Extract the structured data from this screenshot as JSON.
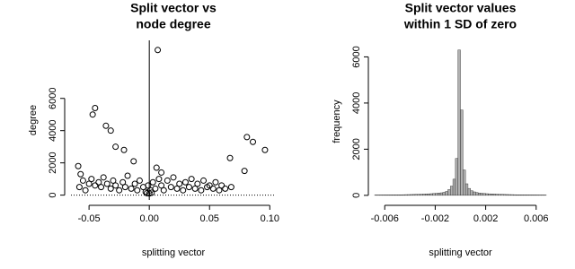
{
  "chart_data": [
    {
      "type": "scatter",
      "title": [
        "Split vector vs",
        "node degree"
      ],
      "xlabel": "splitting vector",
      "ylabel": "degree",
      "color": "#000000",
      "xlim": [
        -0.065,
        0.105
      ],
      "ylim": [
        -300,
        9600
      ],
      "xticks": [
        -0.05,
        {
          "value": 0,
          "label": "0.00"
        },
        0.05,
        {
          "value": 0.1,
          "label": "0.10"
        }
      ],
      "yticks": [
        0,
        2000,
        4000,
        6000
      ],
      "x": [
        0.007,
        -0.045,
        -0.047,
        -0.036,
        -0.032,
        -0.028,
        -0.021,
        0.081,
        0.086,
        0.096,
        0.067,
        0.079,
        -0.059,
        -0.057,
        -0.013,
        0.006,
        0.01,
        -0.055,
        -0.05,
        -0.048,
        -0.045,
        -0.042,
        -0.04,
        -0.038,
        -0.035,
        -0.032,
        -0.03,
        -0.028,
        -0.025,
        -0.022,
        -0.02,
        -0.018,
        -0.015,
        -0.012,
        -0.01,
        -0.008,
        -0.005,
        -0.003,
        -0.001,
        0.001,
        0.003,
        0.005,
        0.008,
        0.01,
        0.012,
        0.015,
        0.018,
        0.02,
        0.023,
        0.025,
        0.028,
        0.03,
        0.033,
        0.035,
        0.038,
        0.04,
        0.043,
        0.045,
        0.048,
        0.05,
        0.053,
        0.055,
        0.058,
        0.06,
        0.063,
        0.068,
        -0.058,
        -0.053,
        0,
        0.002,
        -0.002
      ],
      "values": [
        9000,
        5400,
        5000,
        4300,
        4000,
        3000,
        2800,
        3600,
        3300,
        2800,
        2300,
        1500,
        1800,
        1300,
        2100,
        1700,
        1400,
        900,
        700,
        1000,
        600,
        800,
        500,
        1100,
        700,
        400,
        900,
        600,
        300,
        800,
        500,
        1200,
        400,
        700,
        300,
        900,
        500,
        200,
        600,
        300,
        800,
        400,
        1000,
        600,
        300,
        900,
        500,
        1100,
        400,
        700,
        300,
        800,
        500,
        1000,
        400,
        700,
        300,
        900,
        500,
        600,
        400,
        800,
        300,
        600,
        400,
        500,
        500,
        300,
        100,
        150,
        120
      ]
    },
    {
      "type": "histogram",
      "title": [
        "Split vector values",
        "within 1 SD of zero"
      ],
      "xlabel": "splitting vector",
      "ylabel": "frequency",
      "color": "#b0b0b0",
      "xlim": [
        -0.0068,
        0.0068
      ],
      "ylim": [
        -200,
        6600
      ],
      "xticks": [
        -0.006,
        -0.002,
        0.002,
        0.006
      ],
      "yticks": [
        0,
        2000,
        4000,
        6000
      ],
      "bins": [
        -0.0068,
        -0.0066,
        -0.0064,
        -0.0062,
        -0.006,
        -0.0058,
        -0.0056,
        -0.0054,
        -0.0052,
        -0.005,
        -0.0048,
        -0.0046,
        -0.0044,
        -0.0042,
        -0.004,
        -0.0038,
        -0.0036,
        -0.0034,
        -0.0032,
        -0.003,
        -0.0028,
        -0.0026,
        -0.0024,
        -0.0022,
        -0.002,
        -0.0018,
        -0.0016,
        -0.0014,
        -0.0012,
        -0.001,
        -0.0008,
        -0.0006,
        -0.0004,
        -0.0002,
        0,
        0.0002,
        0.0004,
        0.0006,
        0.0008,
        0.001,
        0.0012,
        0.0014,
        0.0016,
        0.0018,
        0.002,
        0.0022,
        0.0024,
        0.0026,
        0.0028,
        0.003,
        0.0032,
        0.0034,
        0.0036,
        0.0038,
        0.004,
        0.0042,
        0.0044,
        0.0046,
        0.0048,
        0.005,
        0.0052,
        0.0054,
        0.0056,
        0.0058,
        0.006,
        0.0062,
        0.0064,
        0.0066,
        0.0068
      ],
      "values": [
        15,
        15,
        16,
        17,
        18,
        18,
        20,
        20,
        22,
        24,
        25,
        27,
        30,
        32,
        35,
        38,
        42,
        46,
        50,
        55,
        60,
        66,
        72,
        80,
        90,
        100,
        110,
        130,
        170,
        250,
        400,
        700,
        1600,
        6300,
        3700,
        1100,
        500,
        300,
        200,
        150,
        120,
        100,
        90,
        80,
        72,
        66,
        60,
        55,
        50,
        46,
        42,
        38,
        35,
        32,
        30,
        27,
        25,
        24,
        22,
        20,
        20,
        18,
        18,
        17,
        16,
        15,
        15,
        14
      ]
    }
  ]
}
